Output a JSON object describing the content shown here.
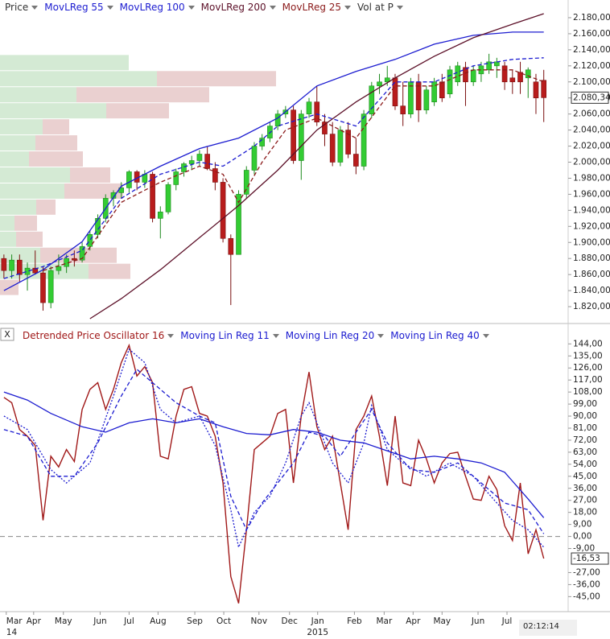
{
  "chart_data": [
    {
      "type": "candlestick",
      "xlim": [
        -0.5,
        71.5
      ],
      "ylim": [
        1803,
        2190
      ],
      "yticks": [
        {
          "value": 1820,
          "label": "1.820,00"
        },
        {
          "value": 1840,
          "label": "1.840,00"
        },
        {
          "value": 1860,
          "label": "1.860,00"
        },
        {
          "value": 1880,
          "label": "1.880,00"
        },
        {
          "value": 1900,
          "label": "1.900,00"
        },
        {
          "value": 1920,
          "label": "1.920,00"
        },
        {
          "value": 1940,
          "label": "1.940,00"
        },
        {
          "value": 1960,
          "label": "1.960,00"
        },
        {
          "value": 1980,
          "label": "1.980,00"
        },
        {
          "value": 2000,
          "label": "2.000,00"
        },
        {
          "value": 2020,
          "label": "2.020,00"
        },
        {
          "value": 2040,
          "label": "2.040,00"
        },
        {
          "value": 2060,
          "label": "2.060,00"
        },
        {
          "value": 2080,
          "label": "2.080,00"
        },
        {
          "value": 2100,
          "label": "2.100,00"
        },
        {
          "value": 2120,
          "label": "2.120,000"
        },
        {
          "value": 2140,
          "label": "2.140,000"
        },
        {
          "value": 2160,
          "label": "2.160,000"
        },
        {
          "value": 2180,
          "label": "2.180,000"
        }
      ],
      "candles": {
        "name": "Price",
        "up_color": "#33cc33",
        "down_color": "#b81c1c",
        "open": [
          1880,
          1865,
          1878,
          1860,
          1868,
          1862,
          1825,
          1865,
          1870,
          1880,
          1878,
          1895,
          1910,
          1930,
          1955,
          1962,
          1968,
          1988,
          1975,
          1985,
          1930,
          1938,
          1972,
          1988,
          1998,
          2002,
          2010,
          1992,
          1975,
          1905,
          1885,
          1960,
          1990,
          2020,
          2030,
          2045,
          2060,
          2065,
          2002,
          2060,
          2075,
          2050,
          2035,
          2000,
          2040,
          2010,
          1995,
          2060,
          2095,
          2100,
          2105,
          2070,
          2060,
          2100,
          2065,
          2075,
          2100,
          2085,
          2100,
          2118,
          2100,
          2110,
          2115,
          2120,
          2120,
          2105,
          2112,
          2105,
          2100,
          2102
        ],
        "high": [
          1885,
          1885,
          1885,
          1875,
          1890,
          1870,
          1870,
          1885,
          1885,
          1890,
          1900,
          1915,
          1935,
          1960,
          1965,
          1975,
          1990,
          1990,
          1990,
          1988,
          1945,
          1975,
          1992,
          2000,
          2008,
          2015,
          2020,
          2000,
          1980,
          1910,
          1965,
          1995,
          2025,
          2035,
          2050,
          2065,
          2070,
          2070,
          2065,
          2080,
          2095,
          2060,
          2050,
          2045,
          2050,
          2030,
          2065,
          2100,
          2110,
          2120,
          2110,
          2100,
          2105,
          2110,
          2095,
          2105,
          2110,
          2120,
          2125,
          2125,
          2120,
          2125,
          2135,
          2130,
          2125,
          2115,
          2125,
          2118,
          2110,
          2115
        ],
        "low": [
          1855,
          1855,
          1850,
          1840,
          1860,
          1815,
          1818,
          1860,
          1862,
          1870,
          1875,
          1890,
          1905,
          1925,
          1945,
          1955,
          1962,
          1965,
          1968,
          1925,
          1905,
          1935,
          1965,
          1982,
          1990,
          1995,
          1990,
          1965,
          1900,
          1822,
          1885,
          1955,
          1985,
          2015,
          2025,
          2040,
          2055,
          1998,
          1978,
          2055,
          2045,
          2020,
          1995,
          1995,
          2005,
          1985,
          1990,
          2055,
          2085,
          2095,
          2065,
          2045,
          2055,
          2050,
          2060,
          2070,
          2075,
          2080,
          2095,
          2070,
          2095,
          2100,
          2110,
          2105,
          2090,
          2085,
          2085,
          2080,
          2060,
          2050
        ],
        "close": [
          1865,
          1878,
          1860,
          1868,
          1862,
          1825,
          1865,
          1870,
          1880,
          1878,
          1895,
          1910,
          1930,
          1955,
          1962,
          1968,
          1988,
          1975,
          1985,
          1930,
          1938,
          1972,
          1988,
          1998,
          2002,
          2010,
          1992,
          1975,
          1905,
          1885,
          1960,
          1990,
          2020,
          2030,
          2045,
          2060,
          2065,
          2002,
          2060,
          2075,
          2050,
          2035,
          2000,
          2040,
          2010,
          1995,
          2060,
          2095,
          2100,
          2105,
          2070,
          2060,
          2100,
          2065,
          2090,
          2100,
          2080,
          2115,
          2120,
          2100,
          2115,
          2120,
          2125,
          2125,
          2100,
          2100,
          2100,
          2115,
          2080,
          2080.34
        ]
      },
      "last_value": {
        "value": 2080.34,
        "label": "2.080,34"
      },
      "series": [
        {
          "name": "MovLReg 55",
          "color": "#1c1cd0",
          "dash": true,
          "x": [
            0,
            5,
            10,
            15,
            20,
            25,
            28,
            32,
            35,
            40,
            45,
            50,
            55,
            60,
            65,
            69
          ],
          "values": [
            1855,
            1870,
            1890,
            1955,
            1985,
            2000,
            1995,
            2020,
            2045,
            2060,
            2045,
            2100,
            2100,
            2120,
            2128,
            2130
          ]
        },
        {
          "name": "MovLReg 100",
          "color": "#1c1cd0",
          "dash": false,
          "x": [
            0,
            5,
            10,
            15,
            20,
            25,
            30,
            35,
            40,
            45,
            50,
            55,
            60,
            65,
            69
          ],
          "values": [
            1840,
            1866,
            1901,
            1970,
            1995,
            2017,
            2030,
            2055,
            2095,
            2113,
            2128,
            2147,
            2158,
            2162,
            2162
          ]
        },
        {
          "name": "MovLReg 200",
          "color": "#5c1028",
          "dash": false,
          "x": [
            11,
            15,
            20,
            25,
            30,
            35,
            40,
            45,
            50,
            55,
            60,
            65,
            69
          ],
          "values": [
            1805,
            1830,
            1866,
            1906,
            1946,
            1990,
            2040,
            2075,
            2105,
            2132,
            2155,
            2172,
            2185
          ]
        },
        {
          "name": "MovLReg 25",
          "color": "#8b1a1a",
          "dash": true,
          "x": [
            5,
            10,
            15,
            20,
            25,
            28,
            30,
            33,
            36,
            40,
            45,
            50,
            55,
            60,
            65,
            69
          ],
          "values": [
            1865,
            1880,
            1950,
            1975,
            1995,
            1985,
            1950,
            2000,
            2040,
            2055,
            2030,
            2095,
            2095,
            2115,
            2115,
            2100
          ]
        }
      ],
      "volume_profile": {
        "name": "Vol at P",
        "up_color": "#cde6cd",
        "down_color": "#e6c8c8",
        "levels": [
          2124,
          2104,
          2084,
          2064,
          2044,
          2024,
          2004,
          1984,
          1964,
          1944,
          1924,
          1904,
          1884,
          1864,
          1844
        ],
        "up": [
          160,
          195,
          95,
          132,
          53,
          44,
          36,
          87,
          80,
          45,
          18,
          20,
          50,
          110,
          0
        ],
        "down": [
          0,
          148,
          165,
          78,
          33,
          52,
          67,
          50,
          73,
          24,
          28,
          33,
          95,
          52,
          23
        ]
      }
    },
    {
      "type": "line",
      "xlim": [
        -0.5,
        71.5
      ],
      "ylim": [
        -49,
        146
      ],
      "yticks": [
        {
          "value": 144,
          "label": "144,00"
        },
        {
          "value": 135,
          "label": "135,00"
        },
        {
          "value": 126,
          "label": "126,00"
        },
        {
          "value": 117,
          "label": "117,00"
        },
        {
          "value": 108,
          "label": "108,00"
        },
        {
          "value": 99,
          "label": "99,00"
        },
        {
          "value": 90,
          "label": "90,00"
        },
        {
          "value": 81,
          "label": "81,00"
        },
        {
          "value": 72,
          "label": "72,00"
        },
        {
          "value": 63,
          "label": "63,00"
        },
        {
          "value": 54,
          "label": "54,00"
        },
        {
          "value": 45,
          "label": "45,00"
        },
        {
          "value": 36,
          "label": "36,00"
        },
        {
          "value": 27,
          "label": "27,00"
        },
        {
          "value": 18,
          "label": "18,00"
        },
        {
          "value": 9,
          "label": "9,00"
        },
        {
          "value": 0,
          "label": "0,00"
        },
        {
          "value": -9,
          "label": "-9,00"
        },
        {
          "value": -27,
          "label": "-27,00"
        },
        {
          "value": -36,
          "label": "-36,00"
        },
        {
          "value": -45,
          "label": "-45,00"
        }
      ],
      "xticks": [
        {
          "value": 0.3,
          "label": "Mar"
        },
        {
          "value": 3.8,
          "label": "Apr"
        },
        {
          "value": 7.6,
          "label": "May"
        },
        {
          "value": 12.3,
          "label": "Jun"
        },
        {
          "value": 16,
          "label": "Jul"
        },
        {
          "value": 19.7,
          "label": "Aug"
        },
        {
          "value": 24.4,
          "label": "Sep"
        },
        {
          "value": 28.1,
          "label": "Oct"
        },
        {
          "value": 32.6,
          "label": "Nov"
        },
        {
          "value": 36.5,
          "label": "Dec"
        },
        {
          "value": 40.1,
          "label": "Jan"
        },
        {
          "value": 44.8,
          "label": "Feb"
        },
        {
          "value": 48.6,
          "label": "Mar"
        },
        {
          "value": 52.3,
          "label": "Apr"
        },
        {
          "value": 56,
          "label": "May"
        },
        {
          "value": 60.6,
          "label": "Jun"
        },
        {
          "value": 64.3,
          "label": "Jul"
        }
      ],
      "year_ticks": [
        {
          "value": 0.3,
          "label": "14"
        },
        {
          "value": 40.1,
          "label": "2015"
        }
      ],
      "time_label": "02:12:14",
      "last_value": {
        "value": -16.53,
        "label": "-16,53"
      },
      "series": [
        {
          "name": "Detrended Price Oscillator 16",
          "color": "#a01818",
          "style": "solid",
          "values": [
            104,
            100,
            80,
            75,
            68,
            12,
            60,
            52,
            65,
            56,
            95,
            110,
            115,
            95,
            110,
            130,
            143,
            120,
            127,
            115,
            60,
            58,
            90,
            110,
            112,
            92,
            90,
            75,
            40,
            -30,
            -50,
            5,
            65,
            70,
            75,
            92,
            95,
            40,
            90,
            123,
            82,
            65,
            75,
            40,
            5,
            80,
            90,
            105,
            75,
            38,
            90,
            40,
            38,
            72,
            58,
            40,
            55,
            62,
            63,
            45,
            28,
            27,
            45,
            35,
            8,
            -3,
            40,
            -13,
            5,
            -16.53
          ]
        },
        {
          "name": "Moving Lin Reg 11",
          "color": "#1c1cd0",
          "style": "dotted",
          "x": [
            0,
            3,
            6,
            8,
            11,
            14,
            16,
            18,
            20,
            22,
            25,
            27,
            29,
            30,
            32,
            34,
            36,
            38,
            39,
            42,
            44,
            46,
            47,
            49,
            51,
            54,
            57,
            60,
            63,
            65,
            67,
            69
          ],
          "values": [
            90,
            80,
            50,
            40,
            55,
            105,
            140,
            130,
            95,
            85,
            90,
            68,
            20,
            -8,
            18,
            30,
            55,
            90,
            100,
            55,
            40,
            70,
            98,
            65,
            55,
            45,
            55,
            45,
            25,
            12,
            5,
            -8
          ]
        },
        {
          "name": "Moving Lin Reg 20",
          "color": "#1c1cd0",
          "style": "dashed",
          "x": [
            0,
            3,
            6,
            9,
            12,
            15,
            17,
            19,
            22,
            25,
            27,
            29,
            31,
            33,
            35,
            37,
            39,
            41,
            43,
            45,
            47,
            49,
            52,
            55,
            58,
            61,
            64,
            67,
            69
          ],
          "values": [
            80,
            75,
            45,
            45,
            70,
            105,
            125,
            115,
            100,
            90,
            85,
            30,
            5,
            25,
            40,
            55,
            78,
            75,
            60,
            78,
            95,
            70,
            50,
            48,
            55,
            40,
            25,
            20,
            2
          ]
        },
        {
          "name": "Moving Lin Reg 40",
          "color": "#1c1cd0",
          "style": "solid",
          "x": [
            0,
            3,
            6,
            10,
            13,
            16,
            19,
            22,
            25,
            28,
            31,
            34,
            37,
            40,
            43,
            46,
            49,
            52,
            55,
            58,
            61,
            64,
            67,
            69
          ],
          "values": [
            108,
            102,
            92,
            82,
            78,
            85,
            88,
            85,
            88,
            82,
            77,
            76,
            80,
            78,
            72,
            70,
            64,
            58,
            60,
            58,
            55,
            48,
            28,
            14
          ]
        }
      ]
    }
  ]
}
